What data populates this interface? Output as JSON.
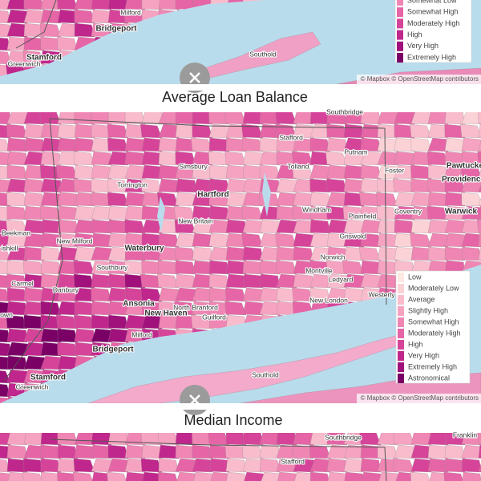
{
  "maps": [
    {
      "places": [
        "Milford",
        "Bridgeport",
        "Stamford",
        "Greenwich",
        "Southold"
      ],
      "legend": [
        "Somewhat Low",
        "Somewhat High",
        "Moderately High",
        "High",
        "Very High",
        "Extremely High"
      ],
      "attribution": "© Mapbox © OpenStreetMap contributors"
    },
    {
      "places": [
        "Southbridge",
        "Stafford",
        "Pawtucke",
        "Providence",
        "Putnam",
        "Foster",
        "Simsbury",
        "Tolland",
        "Torrington",
        "Hartford",
        "Windham",
        "Coventry",
        "Warwick",
        "New Britain",
        "Plainfield",
        "Beekman",
        "New Milford",
        "Griswold",
        "Waterbury",
        "Norwich",
        "Southbury",
        "Montville",
        "Ledyard",
        "Danbury",
        "Carmel",
        "Ansonia",
        "North Branford",
        "New London",
        "Westerly",
        "New Haven",
        "Guilford",
        "Milford",
        "Bridgeport",
        "Stamford",
        "Greenwich",
        "Southold",
        "ishkill",
        "own"
      ],
      "legend": [
        "Low",
        "Moderately Low",
        "Average",
        "Slightly High",
        "Somewhat High",
        "Moderately High",
        "High",
        "Very High",
        "Extremely High",
        "Astronomical"
      ],
      "attribution": "© Mapbox © OpenStreetMap contributors"
    },
    {
      "places": [
        "Southbridge",
        "Stafford",
        "Franklin"
      ]
    }
  ],
  "titles": [
    "Average Loan Balance",
    "Median Income"
  ]
}
